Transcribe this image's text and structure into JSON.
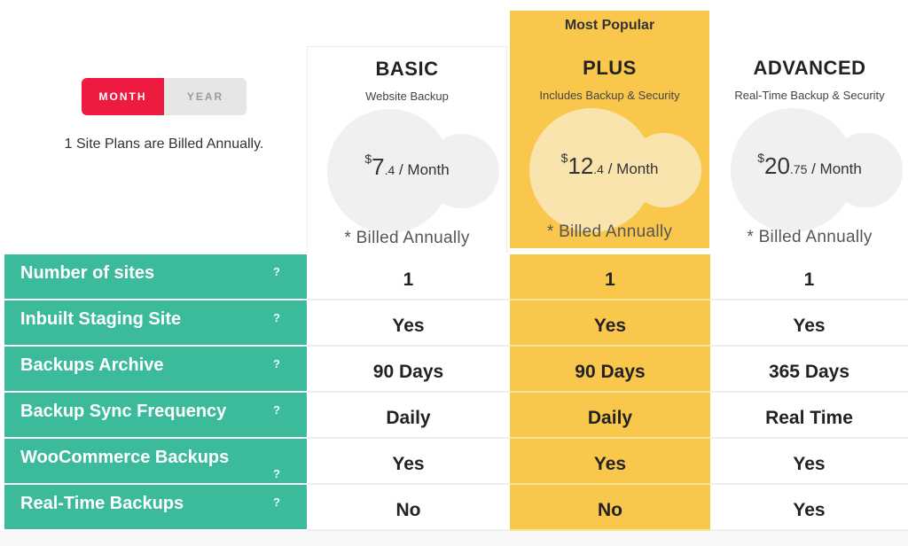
{
  "toggle": {
    "month_label": "MONTH",
    "year_label": "YEAR",
    "active": "month"
  },
  "billing_note": "1 Site Plans are Billed Annually.",
  "colors": {
    "accent_red": "#ee1b41",
    "feature_green": "#3bba9c",
    "popular_yellow": "#f9c74c"
  },
  "plans": [
    {
      "name": "BASIC",
      "subtitle": "Website Backup",
      "currency": "$",
      "price_whole": "7",
      "price_cents": ".4",
      "per": " / Month",
      "billed": "* Billed Annually"
    },
    {
      "name": "PLUS",
      "badge": "Most Popular",
      "subtitle": "Includes Backup & Security",
      "currency": "$",
      "price_whole": "12",
      "price_cents": ".4",
      "per": " / Month",
      "billed": "* Billed Annually"
    },
    {
      "name": "ADVANCED",
      "subtitle": "Real-Time Backup & Security",
      "currency": "$",
      "price_whole": "20",
      "price_cents": ".75",
      "per": " / Month",
      "billed": "* Billed Annually"
    }
  ],
  "help_mark": "?",
  "features": [
    {
      "label": "Number of sites",
      "basic": "1",
      "plus": "1",
      "advanced": "1"
    },
    {
      "label": "Inbuilt Staging Site",
      "basic": "Yes",
      "plus": "Yes",
      "advanced": "Yes"
    },
    {
      "label": "Backups Archive",
      "basic": "90 Days",
      "plus": "90 Days",
      "advanced": "365 Days"
    },
    {
      "label": "Backup Sync Frequency",
      "basic": "Daily",
      "plus": "Daily",
      "advanced": "Real Time"
    },
    {
      "label": "WooCommerce Backups",
      "basic": "Yes",
      "plus": "Yes",
      "advanced": "Yes"
    },
    {
      "label": "Real-Time Backups",
      "basic": "No",
      "plus": "No",
      "advanced": "Yes"
    }
  ]
}
